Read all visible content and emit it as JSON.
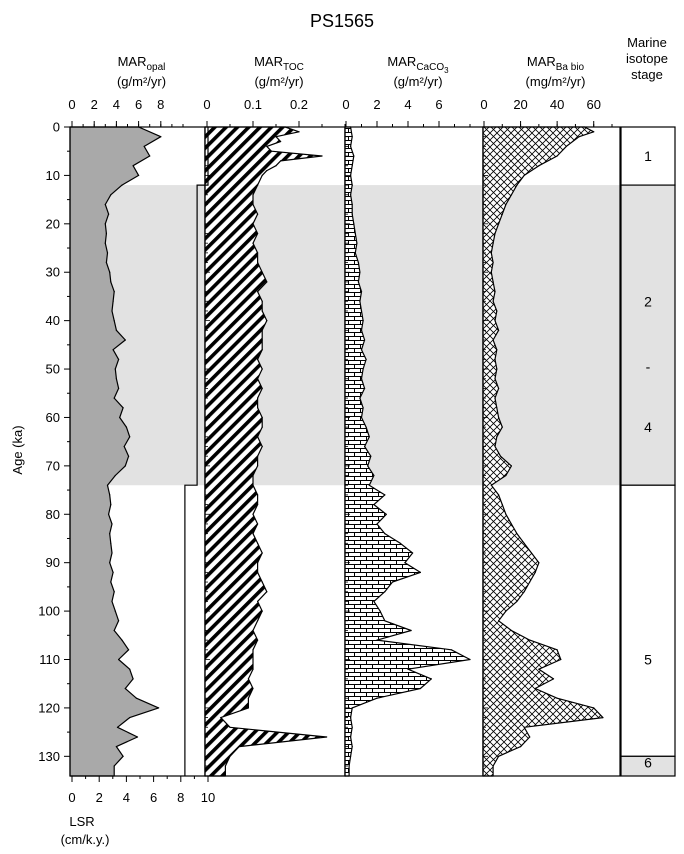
{
  "figure": {
    "title": "PS1565",
    "ylabel": "Age (ka)",
    "ylim": [
      0,
      132
    ],
    "yticks": [
      "0",
      "10",
      "20",
      "30",
      "40",
      "50",
      "60",
      "70",
      "80",
      "90",
      "100",
      "110",
      "120",
      "130"
    ],
    "shaded_intervals_ka": [
      [
        12,
        74
      ]
    ],
    "colors": {
      "shade": "#e2e2e2",
      "opal_fill": "#a9a9a9",
      "stroke": "#000000"
    }
  },
  "chart_data": [
    {
      "type": "area",
      "name": "opal",
      "label_main": "MAR",
      "label_sub": "opal",
      "unit": "(g/m²/yr)",
      "xlim": [
        0,
        10
      ],
      "xticks": [
        "0",
        "2",
        "4",
        "6",
        "8"
      ],
      "fill": "gray",
      "age": [
        0,
        2,
        4,
        6,
        8,
        10,
        12,
        14,
        16,
        18,
        20,
        22,
        24,
        26,
        28,
        30,
        32,
        34,
        36,
        38,
        40,
        42,
        44,
        46,
        48,
        50,
        52,
        54,
        56,
        58,
        60,
        62,
        64,
        66,
        68,
        70,
        72,
        74,
        76,
        78,
        80,
        82,
        84,
        86,
        88,
        90,
        92,
        94,
        96,
        98,
        100,
        102,
        104,
        106,
        108,
        110,
        112,
        114,
        116,
        118,
        120,
        122,
        124,
        126,
        128,
        130,
        132
      ],
      "values": [
        6.0,
        8.0,
        6.5,
        7.0,
        5.5,
        6.0,
        4.5,
        3.5,
        3.0,
        3.3,
        3.0,
        3.1,
        3.0,
        3.2,
        3.1,
        3.4,
        3.5,
        3.8,
        3.7,
        3.6,
        3.8,
        4.0,
        4.8,
        3.7,
        4.2,
        3.9,
        4.0,
        4.2,
        3.8,
        4.6,
        4.3,
        4.9,
        5.2,
        4.7,
        5.1,
        4.8,
        3.9,
        3.2,
        3.4,
        3.5,
        3.3,
        3.6,
        3.4,
        3.5,
        3.6,
        3.4,
        3.7,
        3.5,
        3.8,
        3.6,
        3.9,
        4.2,
        3.8,
        4.5,
        5.1,
        4.2,
        5.2,
        5.5,
        4.8,
        5.8,
        7.8,
        5.2,
        4.1,
        5.9,
        4.0,
        4.6,
        3.8
      ]
    },
    {
      "type": "line",
      "name": "lsr",
      "axis_label": "LSR",
      "unit": "(cm/k.y.)",
      "xlim": [
        0,
        10
      ],
      "xticks": [
        "0",
        "2",
        "4",
        "6",
        "8",
        "10"
      ],
      "steps": [
        {
          "from": 0,
          "to": 12,
          "value": 10
        },
        {
          "from": 12,
          "to": 74,
          "value": 9.2
        },
        {
          "from": 74,
          "to": 132,
          "value": 8.3
        }
      ]
    },
    {
      "type": "area",
      "name": "toc",
      "label_main": "MAR",
      "label_sub": "TOC",
      "unit": "(g/m²/yr)",
      "xlim": [
        0,
        0.3
      ],
      "xticks": [
        "0",
        "0.1",
        "0.2"
      ],
      "fill": "diagonal-hatch",
      "age": [
        0,
        1,
        2,
        3,
        4,
        5,
        6,
        7,
        8,
        9,
        10,
        12,
        14,
        16,
        18,
        20,
        22,
        24,
        26,
        28,
        30,
        32,
        34,
        36,
        38,
        40,
        42,
        44,
        46,
        48,
        50,
        52,
        54,
        56,
        58,
        60,
        62,
        64,
        66,
        68,
        70,
        72,
        74,
        76,
        78,
        80,
        82,
        84,
        86,
        88,
        90,
        92,
        94,
        96,
        98,
        100,
        102,
        104,
        106,
        108,
        110,
        112,
        114,
        116,
        118,
        120,
        122,
        124,
        126,
        128,
        130,
        132
      ],
      "values": [
        0.17,
        0.2,
        0.15,
        0.16,
        0.13,
        0.14,
        0.25,
        0.16,
        0.15,
        0.13,
        0.12,
        0.11,
        0.1,
        0.1,
        0.11,
        0.1,
        0.11,
        0.1,
        0.11,
        0.11,
        0.12,
        0.13,
        0.11,
        0.12,
        0.12,
        0.13,
        0.12,
        0.12,
        0.12,
        0.11,
        0.12,
        0.11,
        0.12,
        0.11,
        0.11,
        0.12,
        0.12,
        0.11,
        0.12,
        0.11,
        0.11,
        0.1,
        0.1,
        0.11,
        0.11,
        0.1,
        0.11,
        0.1,
        0.11,
        0.12,
        0.11,
        0.11,
        0.12,
        0.13,
        0.11,
        0.12,
        0.11,
        0.1,
        0.11,
        0.1,
        0.1,
        0.1,
        0.09,
        0.1,
        0.09,
        0.09,
        0.03,
        0.05,
        0.26,
        0.07,
        0.05,
        0.04
      ]
    },
    {
      "type": "area",
      "name": "caco3",
      "label_main": "MAR",
      "label_sub": "CaCO3",
      "unit": "(g/m²/yr)",
      "xlim": [
        0,
        8
      ],
      "xticks": [
        "0",
        "2",
        "4",
        "6"
      ],
      "fill": "brick",
      "age": [
        0,
        2,
        4,
        6,
        8,
        10,
        12,
        14,
        16,
        18,
        20,
        22,
        24,
        26,
        28,
        30,
        32,
        34,
        36,
        38,
        40,
        42,
        44,
        46,
        48,
        50,
        52,
        54,
        56,
        58,
        60,
        62,
        64,
        66,
        68,
        70,
        72,
        74,
        76,
        78,
        80,
        82,
        84,
        86,
        88,
        90,
        92,
        94,
        96,
        98,
        100,
        102,
        104,
        106,
        108,
        110,
        112,
        114,
        116,
        118,
        120,
        122,
        124,
        126,
        128,
        130,
        132
      ],
      "values": [
        0.3,
        0.4,
        0.3,
        0.5,
        0.4,
        0.3,
        0.4,
        0.3,
        0.4,
        0.4,
        0.5,
        0.6,
        0.7,
        0.6,
        0.8,
        0.9,
        0.8,
        1.0,
        0.9,
        1.0,
        1.1,
        1.0,
        1.2,
        1.0,
        1.3,
        1.1,
        1.0,
        1.2,
        0.9,
        1.1,
        1.0,
        1.3,
        1.5,
        1.2,
        1.6,
        1.4,
        1.8,
        1.5,
        2.5,
        1.8,
        2.6,
        2.0,
        2.5,
        3.5,
        4.3,
        3.8,
        4.8,
        3.0,
        2.5,
        1.8,
        2.2,
        2.5,
        4.2,
        2.0,
        6.8,
        8.0,
        4.0,
        5.5,
        4.8,
        2.0,
        0.4,
        0.3,
        0.4,
        0.3,
        0.4,
        0.3,
        0.2
      ]
    },
    {
      "type": "area",
      "name": "babio",
      "label_main": "MAR",
      "label_sub": "Ba bio",
      "unit": "(mg/m²/yr)",
      "xlim": [
        0,
        70
      ],
      "xticks": [
        "0",
        "20",
        "40",
        "60"
      ],
      "fill": "crosshatch",
      "age": [
        0,
        1,
        2,
        4,
        6,
        8,
        10,
        12,
        14,
        16,
        18,
        20,
        22,
        24,
        26,
        28,
        30,
        32,
        34,
        36,
        38,
        40,
        42,
        44,
        46,
        48,
        50,
        52,
        54,
        56,
        58,
        60,
        62,
        64,
        66,
        68,
        70,
        72,
        74,
        76,
        78,
        80,
        82,
        84,
        86,
        88,
        90,
        92,
        94,
        96,
        98,
        100,
        102,
        104,
        106,
        108,
        110,
        112,
        114,
        116,
        118,
        120,
        122,
        124,
        126,
        128,
        130,
        132
      ],
      "values": [
        55,
        60,
        52,
        45,
        40,
        30,
        22,
        18,
        15,
        12,
        10,
        8,
        6,
        5,
        4,
        5,
        4,
        5,
        6,
        5,
        7,
        6,
        8,
        5,
        7,
        6,
        7,
        6,
        8,
        6,
        7,
        8,
        10,
        7,
        6,
        9,
        15,
        12,
        4,
        8,
        10,
        12,
        15,
        18,
        22,
        26,
        30,
        28,
        25,
        22,
        18,
        12,
        8,
        15,
        25,
        40,
        42,
        30,
        38,
        28,
        40,
        60,
        65,
        22,
        25,
        20,
        8,
        5
      ]
    },
    {
      "type": "table",
      "name": "isotope-stages",
      "header_lines": [
        "Marine",
        "isotope",
        "stage"
      ],
      "stages": [
        {
          "label": "1",
          "from": 0,
          "to": 12,
          "shaded": false
        },
        {
          "label": "2",
          "from": 12,
          "to": 74,
          "shaded": true
        },
        {
          "label": "-",
          "from": 12,
          "to": 74,
          "shaded": true
        },
        {
          "label": "4",
          "from": 12,
          "to": 74,
          "shaded": true
        },
        {
          "label": "5",
          "from": 74,
          "to": 130,
          "shaded": false
        },
        {
          "label": "6",
          "from": 130,
          "to": 132,
          "shaded": true
        }
      ]
    }
  ]
}
